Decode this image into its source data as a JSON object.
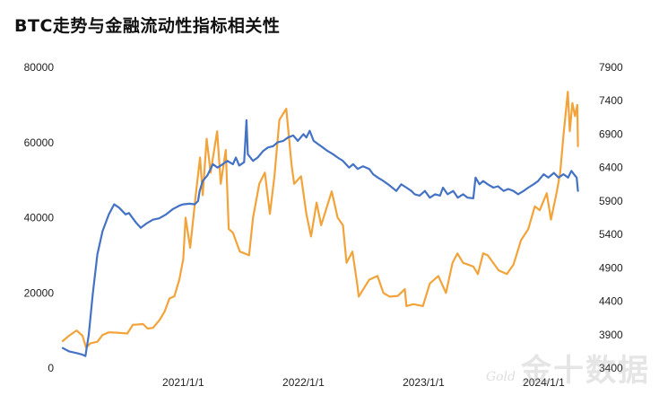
{
  "title": "BTC走势与金融流动性指标相关性",
  "watermark": {
    "main": "金十数据",
    "sub": "Gold"
  },
  "chart_data": {
    "type": "line",
    "title": "BTC走势与金融流动性指标相关性",
    "x_type": "date",
    "xlim": [
      "2020-01-01",
      "2024-04-15"
    ],
    "x_ticks": [
      "2021/1/1",
      "2022/1/1",
      "2023/1/1",
      "2024/1/1"
    ],
    "y_left": {
      "lim": [
        0,
        80000
      ],
      "ticks": [
        "0",
        "20000",
        "40000",
        "60000",
        "80000"
      ]
    },
    "y_right": {
      "lim": [
        3400,
        7900
      ],
      "ticks": [
        "3400",
        "3900",
        "4400",
        "4900",
        "5400",
        "5900",
        "6400",
        "6900",
        "7400",
        "7900"
      ]
    },
    "grid": false,
    "legend": "none",
    "series": [
      {
        "axis": "left",
        "color": "#F2A33A",
        "points": [
          [
            "2020-01-01",
            7200
          ],
          [
            "2020-01-20",
            8600
          ],
          [
            "2020-02-12",
            10000
          ],
          [
            "2020-03-01",
            8600
          ],
          [
            "2020-03-12",
            5400
          ],
          [
            "2020-03-25",
            6600
          ],
          [
            "2020-04-15",
            7000
          ],
          [
            "2020-05-01",
            8800
          ],
          [
            "2020-05-20",
            9500
          ],
          [
            "2020-06-15",
            9400
          ],
          [
            "2020-07-15",
            9200
          ],
          [
            "2020-08-01",
            11500
          ],
          [
            "2020-09-01",
            11700
          ],
          [
            "2020-09-15",
            10500
          ],
          [
            "2020-10-01",
            10700
          ],
          [
            "2020-10-21",
            12800
          ],
          [
            "2020-11-05",
            15000
          ],
          [
            "2020-11-20",
            18500
          ],
          [
            "2020-12-05",
            19100
          ],
          [
            "2020-12-20",
            23500
          ],
          [
            "2021-01-01",
            29000
          ],
          [
            "2021-01-08",
            40000
          ],
          [
            "2021-01-22",
            32000
          ],
          [
            "2021-02-08",
            46000
          ],
          [
            "2021-02-21",
            56000
          ],
          [
            "2021-03-01",
            46000
          ],
          [
            "2021-03-13",
            61000
          ],
          [
            "2021-03-25",
            52000
          ],
          [
            "2021-04-14",
            63000
          ],
          [
            "2021-04-25",
            49000
          ],
          [
            "2021-05-10",
            58000
          ],
          [
            "2021-05-19",
            37000
          ],
          [
            "2021-06-01",
            36000
          ],
          [
            "2021-06-22",
            31000
          ],
          [
            "2021-07-20",
            30000
          ],
          [
            "2021-08-01",
            40000
          ],
          [
            "2021-08-20",
            49000
          ],
          [
            "2021-09-06",
            52000
          ],
          [
            "2021-09-21",
            41000
          ],
          [
            "2021-10-05",
            51000
          ],
          [
            "2021-10-20",
            66000
          ],
          [
            "2021-11-10",
            69000
          ],
          [
            "2021-11-26",
            54000
          ],
          [
            "2021-12-04",
            49000
          ],
          [
            "2021-12-25",
            51000
          ],
          [
            "2022-01-10",
            41000
          ],
          [
            "2022-01-24",
            35000
          ],
          [
            "2022-02-10",
            44000
          ],
          [
            "2022-02-24",
            38000
          ],
          [
            "2022-03-28",
            47000
          ],
          [
            "2022-04-15",
            40000
          ],
          [
            "2022-05-01",
            38000
          ],
          [
            "2022-05-12",
            28000
          ],
          [
            "2022-05-30",
            31000
          ],
          [
            "2022-06-14",
            22000
          ],
          [
            "2022-06-18",
            19000
          ],
          [
            "2022-07-20",
            23500
          ],
          [
            "2022-08-14",
            24500
          ],
          [
            "2022-09-01",
            20000
          ],
          [
            "2022-09-20",
            19000
          ],
          [
            "2022-10-15",
            19200
          ],
          [
            "2022-11-05",
            21000
          ],
          [
            "2022-11-10",
            16500
          ],
          [
            "2022-12-01",
            17000
          ],
          [
            "2022-12-30",
            16500
          ],
          [
            "2023-01-20",
            22500
          ],
          [
            "2023-02-15",
            24500
          ],
          [
            "2023-03-10",
            20000
          ],
          [
            "2023-03-30",
            28000
          ],
          [
            "2023-04-14",
            30500
          ],
          [
            "2023-05-01",
            28000
          ],
          [
            "2023-06-01",
            27000
          ],
          [
            "2023-06-15",
            25000
          ],
          [
            "2023-07-01",
            30500
          ],
          [
            "2023-07-15",
            30000
          ],
          [
            "2023-08-17",
            26000
          ],
          [
            "2023-09-11",
            25000
          ],
          [
            "2023-10-01",
            27500
          ],
          [
            "2023-10-24",
            34000
          ],
          [
            "2023-11-15",
            37000
          ],
          [
            "2023-12-05",
            43000
          ],
          [
            "2023-12-20",
            42000
          ],
          [
            "2024-01-10",
            46500
          ],
          [
            "2024-01-23",
            39500
          ],
          [
            "2024-02-10",
            47000
          ],
          [
            "2024-02-20",
            52000
          ],
          [
            "2024-03-01",
            62000
          ],
          [
            "2024-03-14",
            73500
          ],
          [
            "2024-03-20",
            63000
          ],
          [
            "2024-03-28",
            70500
          ],
          [
            "2024-04-05",
            67000
          ],
          [
            "2024-04-12",
            70000
          ],
          [
            "2024-04-14",
            59000
          ]
        ]
      },
      {
        "axis": "right",
        "color": "#4472C4",
        "points": [
          [
            "2020-01-01",
            3700
          ],
          [
            "2020-01-20",
            3650
          ],
          [
            "2020-02-15",
            3620
          ],
          [
            "2020-03-01",
            3600
          ],
          [
            "2020-03-10",
            3580
          ],
          [
            "2020-03-20",
            3900
          ],
          [
            "2020-04-01",
            4500
          ],
          [
            "2020-04-15",
            5100
          ],
          [
            "2020-05-01",
            5450
          ],
          [
            "2020-05-20",
            5700
          ],
          [
            "2020-06-05",
            5850
          ],
          [
            "2020-06-20",
            5800
          ],
          [
            "2020-07-10",
            5700
          ],
          [
            "2020-07-20",
            5720
          ],
          [
            "2020-08-10",
            5580
          ],
          [
            "2020-08-25",
            5500
          ],
          [
            "2020-09-10",
            5560
          ],
          [
            "2020-10-01",
            5620
          ],
          [
            "2020-10-20",
            5640
          ],
          [
            "2020-11-10",
            5700
          ],
          [
            "2020-12-01",
            5780
          ],
          [
            "2020-12-20",
            5830
          ],
          [
            "2021-01-01",
            5850
          ],
          [
            "2021-01-20",
            5860
          ],
          [
            "2021-02-05",
            5850
          ],
          [
            "2021-02-15",
            5900
          ],
          [
            "2021-02-20",
            6050
          ],
          [
            "2021-03-01",
            6200
          ],
          [
            "2021-03-15",
            6280
          ],
          [
            "2021-04-01",
            6450
          ],
          [
            "2021-04-15",
            6400
          ],
          [
            "2021-05-01",
            6450
          ],
          [
            "2021-05-15",
            6500
          ],
          [
            "2021-06-01",
            6450
          ],
          [
            "2021-06-10",
            6550
          ],
          [
            "2021-06-20",
            6430
          ],
          [
            "2021-07-05",
            6480
          ],
          [
            "2021-07-12",
            7110
          ],
          [
            "2021-07-16",
            6600
          ],
          [
            "2021-08-01",
            6500
          ],
          [
            "2021-08-15",
            6550
          ],
          [
            "2021-09-01",
            6650
          ],
          [
            "2021-09-15",
            6700
          ],
          [
            "2021-10-01",
            6720
          ],
          [
            "2021-10-15",
            6780
          ],
          [
            "2021-11-01",
            6800
          ],
          [
            "2021-11-15",
            6850
          ],
          [
            "2021-12-01",
            6880
          ],
          [
            "2021-12-15",
            6800
          ],
          [
            "2022-01-01",
            6900
          ],
          [
            "2022-01-10",
            6850
          ],
          [
            "2022-01-20",
            6950
          ],
          [
            "2022-02-01",
            6800
          ],
          [
            "2022-02-15",
            6750
          ],
          [
            "2022-03-01",
            6700
          ],
          [
            "2022-03-15",
            6650
          ],
          [
            "2022-04-01",
            6600
          ],
          [
            "2022-04-15",
            6550
          ],
          [
            "2022-05-01",
            6500
          ],
          [
            "2022-05-20",
            6400
          ],
          [
            "2022-06-01",
            6450
          ],
          [
            "2022-06-15",
            6380
          ],
          [
            "2022-07-01",
            6420
          ],
          [
            "2022-07-20",
            6380
          ],
          [
            "2022-08-01",
            6300
          ],
          [
            "2022-08-15",
            6250
          ],
          [
            "2022-09-01",
            6200
          ],
          [
            "2022-09-15",
            6150
          ],
          [
            "2022-09-28",
            6100
          ],
          [
            "2022-10-10",
            6050
          ],
          [
            "2022-10-25",
            6150
          ],
          [
            "2022-11-10",
            6100
          ],
          [
            "2022-11-25",
            6050
          ],
          [
            "2022-12-05",
            6000
          ],
          [
            "2022-12-20",
            5980
          ],
          [
            "2023-01-05",
            6050
          ],
          [
            "2023-01-20",
            5950
          ],
          [
            "2023-02-05",
            6000
          ],
          [
            "2023-02-20",
            5980
          ],
          [
            "2023-03-01",
            6100
          ],
          [
            "2023-03-15",
            6000
          ],
          [
            "2023-04-01",
            6050
          ],
          [
            "2023-04-15",
            5950
          ],
          [
            "2023-05-01",
            6000
          ],
          [
            "2023-05-15",
            5950
          ],
          [
            "2023-06-01",
            5940
          ],
          [
            "2023-06-08",
            6250
          ],
          [
            "2023-06-20",
            6150
          ],
          [
            "2023-07-01",
            6200
          ],
          [
            "2023-07-15",
            6150
          ],
          [
            "2023-08-01",
            6100
          ],
          [
            "2023-08-15",
            6120
          ],
          [
            "2023-09-01",
            6050
          ],
          [
            "2023-09-15",
            6080
          ],
          [
            "2023-10-01",
            6050
          ],
          [
            "2023-10-15",
            6000
          ],
          [
            "2023-11-01",
            6050
          ],
          [
            "2023-11-15",
            6100
          ],
          [
            "2023-12-01",
            6150
          ],
          [
            "2023-12-15",
            6200
          ],
          [
            "2024-01-01",
            6300
          ],
          [
            "2024-01-15",
            6250
          ],
          [
            "2024-02-01",
            6320
          ],
          [
            "2024-02-15",
            6250
          ],
          [
            "2024-03-01",
            6300
          ],
          [
            "2024-03-15",
            6250
          ],
          [
            "2024-03-25",
            6350
          ],
          [
            "2024-04-05",
            6280
          ],
          [
            "2024-04-10",
            6250
          ],
          [
            "2024-04-14",
            6050
          ]
        ]
      }
    ]
  }
}
